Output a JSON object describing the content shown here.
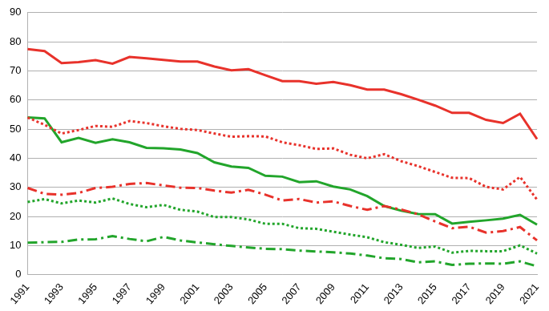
{
  "chart_data": {
    "type": "line",
    "categories": [
      "1991",
      null,
      "1993",
      null,
      "1995",
      null,
      "1997",
      null,
      "1999",
      null,
      "2001",
      null,
      "2003",
      null,
      "2005",
      null,
      "2007",
      null,
      "2009",
      null,
      "2011",
      null,
      "2013",
      null,
      "2015",
      null,
      "2017",
      null,
      "2019",
      null,
      "2021"
    ],
    "series": [
      {
        "color": "#e8322b",
        "line_style": "solid",
        "values": [
          77.5,
          76.8,
          72.7,
          73,
          73.7,
          72.5,
          74.8,
          74.3,
          73.8,
          73.2,
          73.2,
          71.5,
          70.2,
          70.6,
          68.5,
          66.5,
          66.5,
          65.6,
          66.2,
          65.1,
          63.6,
          63.6,
          62,
          60.1,
          58.1,
          55.6,
          55.6,
          53.2,
          52.1,
          55.3,
          46.6
        ]
      },
      {
        "color": "#e8322b",
        "line_style": "dotted",
        "values": [
          54,
          51.5,
          48.5,
          49.7,
          51.1,
          50.8,
          52.8,
          52.1,
          51,
          50.1,
          49.7,
          48.5,
          47.4,
          47.6,
          47.5,
          45.5,
          44.5,
          43.2,
          43.4,
          41.2,
          40,
          41.4,
          39,
          37.3,
          35.3,
          33.3,
          33.2,
          30.2,
          29.3,
          33.6,
          25.8
        ]
      },
      {
        "color": "#e8322b",
        "line_style": "dashdot",
        "values": [
          29.8,
          27.8,
          27.5,
          28.1,
          29.8,
          30.2,
          31.2,
          31.5,
          30.7,
          29.9,
          29.8,
          28.9,
          28.2,
          29.2,
          27.5,
          25.5,
          26,
          24.8,
          25.2,
          23.6,
          22.3,
          23.6,
          22.4,
          20.8,
          18.3,
          16,
          16.5,
          14.5,
          15,
          16.4,
          11.8
        ]
      },
      {
        "color": "#22a52b",
        "line_style": "solid",
        "values": [
          54,
          53.7,
          45.5,
          47,
          45.3,
          46.5,
          45.5,
          43.6,
          43.4,
          43,
          41.8,
          38.6,
          37.2,
          36.7,
          34,
          33.7,
          31.8,
          32.1,
          30.3,
          29.3,
          27,
          23.6,
          22,
          20.9,
          20.8,
          17.6,
          18.2,
          18.7,
          19.3,
          20.6,
          17.2
        ]
      },
      {
        "color": "#22a52b",
        "line_style": "dotted",
        "values": [
          25,
          26,
          24.5,
          25.5,
          24.8,
          26.2,
          24.3,
          23.2,
          24,
          22.3,
          21.7,
          19.8,
          19.8,
          19,
          17.5,
          17.5,
          16,
          15.8,
          14.8,
          13.8,
          12.9,
          11.2,
          10.3,
          9.2,
          9.7,
          7.6,
          8.2,
          8.1,
          8.1,
          10.1,
          7.3
        ]
      },
      {
        "color": "#22a52b",
        "line_style": "dashdot",
        "values": [
          11,
          11.2,
          11.3,
          12.1,
          12.2,
          13.3,
          12.3,
          11.5,
          13,
          11.8,
          11.1,
          10.5,
          9.9,
          9.4,
          8.9,
          8.8,
          8.3,
          8,
          7.7,
          7.3,
          6.6,
          5.7,
          5.4,
          4.3,
          4.6,
          3.4,
          3.8,
          3.9,
          3.8,
          4.6,
          2.9
        ]
      }
    ],
    "ylim": [
      0,
      90
    ],
    "yticks": [
      0,
      10,
      20,
      30,
      40,
      50,
      60,
      70,
      80,
      90
    ],
    "grid": true
  }
}
